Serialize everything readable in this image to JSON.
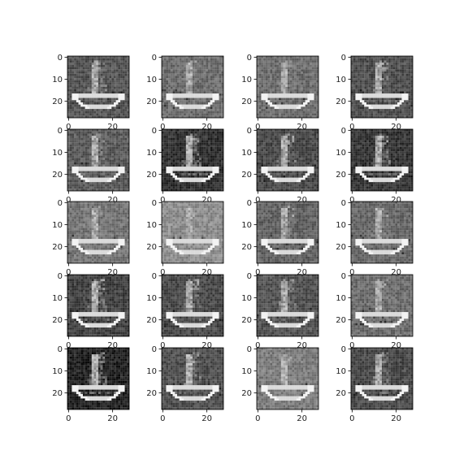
{
  "figure": {
    "rows": 5,
    "cols": 4,
    "image_shape": [
      28,
      28
    ],
    "subject": "boat",
    "colormap": "gray",
    "axes": {
      "y_ticks": [
        "0",
        "10",
        "20"
      ],
      "x_ticks": [
        "0",
        "20"
      ]
    },
    "panels": [
      {
        "id": "r1c1",
        "brightness": 0.32
      },
      {
        "id": "r1c2",
        "brightness": 0.42
      },
      {
        "id": "r1c3",
        "brightness": 0.42
      },
      {
        "id": "r1c4",
        "brightness": 0.3
      },
      {
        "id": "r2c1",
        "brightness": 0.35
      },
      {
        "id": "r2c2",
        "brightness": 0.18
      },
      {
        "id": "r2c3",
        "brightness": 0.28
      },
      {
        "id": "r2c4",
        "brightness": 0.2
      },
      {
        "id": "r3c1",
        "brightness": 0.45
      },
      {
        "id": "r3c2",
        "brightness": 0.55
      },
      {
        "id": "r3c3",
        "brightness": 0.38
      },
      {
        "id": "r3c4",
        "brightness": 0.4
      },
      {
        "id": "r4c1",
        "brightness": 0.25
      },
      {
        "id": "r4c2",
        "brightness": 0.28
      },
      {
        "id": "r4c3",
        "brightness": 0.32
      },
      {
        "id": "r4c4",
        "brightness": 0.42
      },
      {
        "id": "r5c1",
        "brightness": 0.12
      },
      {
        "id": "r5c2",
        "brightness": 0.3
      },
      {
        "id": "r5c3",
        "brightness": 0.48
      },
      {
        "id": "r5c4",
        "brightness": 0.28
      }
    ]
  }
}
